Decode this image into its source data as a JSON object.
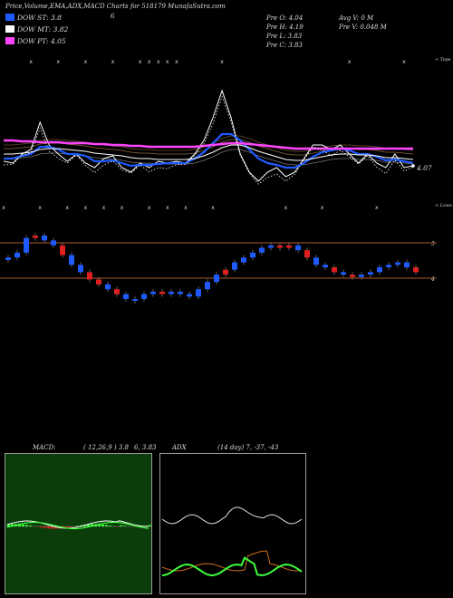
{
  "header": {
    "title": "Price,Volume,EMA,ADX,MACD Charts for 518179 MunafaSutra.com",
    "extra": "6"
  },
  "legend": [
    {
      "label": "DOW ST: 3.8",
      "color": "#1e5aff"
    },
    {
      "label": "DOW MT: 3.82",
      "color": "#ffffff"
    },
    {
      "label": "DOW PT: 4.05",
      "color": "#ff44ff"
    }
  ],
  "stats_left": [
    "Pre O: 4.04",
    "Pre H: 4.19",
    "Pre L: 3.83",
    "Pre C: 3.83"
  ],
  "stats_right": [
    "Avg V: 0 M",
    "Pre V: 0.048 M"
  ],
  "tops_label": "< Tops",
  "lows_label": "< Lows",
  "price_label": "4.07",
  "candle_axis": [
    "5",
    "4"
  ],
  "macd": {
    "title": "MACD:",
    "params": "( 12,26,9 ) 3.8",
    "values": "6, 3.83"
  },
  "adx": {
    "title": "ADX",
    "params": "(14 day) 7, -37, -43"
  },
  "colors": {
    "ema_short": "#1e5aff",
    "ema_mid": "#ffffff",
    "ema_long": "#ff44ff",
    "support": "#b05a2a",
    "macd_bg": "#0b3d0b"
  },
  "chart_data": [
    {
      "type": "line",
      "name": "price-ema-panel",
      "x": [
        0,
        1,
        2,
        3,
        4,
        5,
        6,
        7,
        8,
        9,
        10,
        11,
        12,
        13,
        14,
        15,
        16,
        17,
        18,
        19,
        20,
        21,
        22,
        23,
        24,
        25,
        26,
        27,
        28,
        29,
        30,
        31,
        32,
        33,
        34,
        35,
        36,
        37,
        38,
        39,
        40,
        41,
        42,
        43,
        44,
        45
      ],
      "series": [
        {
          "role": "price",
          "values": [
            4.12,
            4.1,
            4.2,
            4.25,
            4.55,
            4.3,
            4.2,
            4.12,
            4.2,
            4.1,
            4.05,
            4.15,
            4.18,
            4.05,
            4.0,
            4.1,
            4.05,
            4.12,
            4.1,
            4.12,
            4.1,
            4.2,
            4.35,
            4.6,
            4.9,
            4.6,
            4.2,
            4.0,
            3.9,
            4.0,
            4.05,
            3.95,
            4.0,
            4.15,
            4.3,
            4.3,
            4.25,
            4.3,
            4.2,
            4.1,
            4.2,
            4.1,
            4.05,
            4.2,
            4.05,
            4.07
          ]
        },
        {
          "role": "ema-short",
          "values": [
            4.15,
            4.15,
            4.18,
            4.2,
            4.28,
            4.28,
            4.25,
            4.2,
            4.2,
            4.18,
            4.12,
            4.12,
            4.13,
            4.1,
            4.07,
            4.08,
            4.08,
            4.09,
            4.1,
            4.1,
            4.1,
            4.15,
            4.22,
            4.32,
            4.42,
            4.42,
            4.35,
            4.25,
            4.15,
            4.1,
            4.08,
            4.05,
            4.05,
            4.1,
            4.17,
            4.22,
            4.24,
            4.26,
            4.24,
            4.2,
            4.2,
            4.17,
            4.13,
            4.14,
            4.12,
            4.1
          ]
        },
        {
          "role": "ema-mid",
          "values": [
            4.2,
            4.2,
            4.21,
            4.22,
            4.25,
            4.26,
            4.26,
            4.25,
            4.24,
            4.23,
            4.21,
            4.2,
            4.19,
            4.18,
            4.16,
            4.15,
            4.15,
            4.14,
            4.14,
            4.14,
            4.14,
            4.15,
            4.18,
            4.22,
            4.27,
            4.3,
            4.3,
            4.27,
            4.23,
            4.2,
            4.17,
            4.14,
            4.13,
            4.13,
            4.15,
            4.17,
            4.19,
            4.2,
            4.2,
            4.19,
            4.19,
            4.18,
            4.16,
            4.16,
            4.15,
            4.14
          ]
        },
        {
          "role": "ema-long",
          "values": [
            4.35,
            4.35,
            4.34,
            4.34,
            4.33,
            4.33,
            4.33,
            4.32,
            4.32,
            4.32,
            4.31,
            4.31,
            4.3,
            4.3,
            4.29,
            4.29,
            4.28,
            4.28,
            4.28,
            4.28,
            4.28,
            4.28,
            4.29,
            4.3,
            4.31,
            4.32,
            4.32,
            4.31,
            4.3,
            4.29,
            4.28,
            4.27,
            4.26,
            4.26,
            4.26,
            4.26,
            4.26,
            4.26,
            4.26,
            4.26,
            4.26,
            4.26,
            4.26,
            4.26,
            4.26,
            4.26
          ]
        }
      ]
    },
    {
      "type": "bar",
      "name": "candles",
      "x": [
        0,
        1,
        2,
        3,
        4,
        5,
        6,
        7,
        8,
        9,
        10,
        11,
        12,
        13,
        14,
        15,
        16,
        17,
        18,
        19,
        20,
        21,
        22,
        23,
        24,
        25,
        26,
        27,
        28,
        29,
        30,
        31,
        32,
        33,
        34,
        35,
        36,
        37,
        38,
        39,
        40,
        41,
        42,
        43,
        44,
        45
      ],
      "series": [
        {
          "role": "close",
          "values": [
            4.3,
            4.4,
            4.7,
            4.75,
            4.65,
            4.55,
            4.35,
            4.15,
            4.0,
            3.85,
            3.75,
            3.65,
            3.55,
            3.45,
            3.45,
            3.55,
            3.6,
            3.55,
            3.6,
            3.55,
            3.5,
            3.65,
            3.8,
            3.95,
            4.05,
            4.2,
            4.3,
            4.4,
            4.5,
            4.55,
            4.5,
            4.55,
            4.45,
            4.3,
            4.15,
            4.1,
            4.0,
            3.95,
            3.9,
            3.95,
            4.0,
            4.1,
            4.15,
            4.2,
            4.1,
            4.0
          ]
        }
      ]
    }
  ]
}
